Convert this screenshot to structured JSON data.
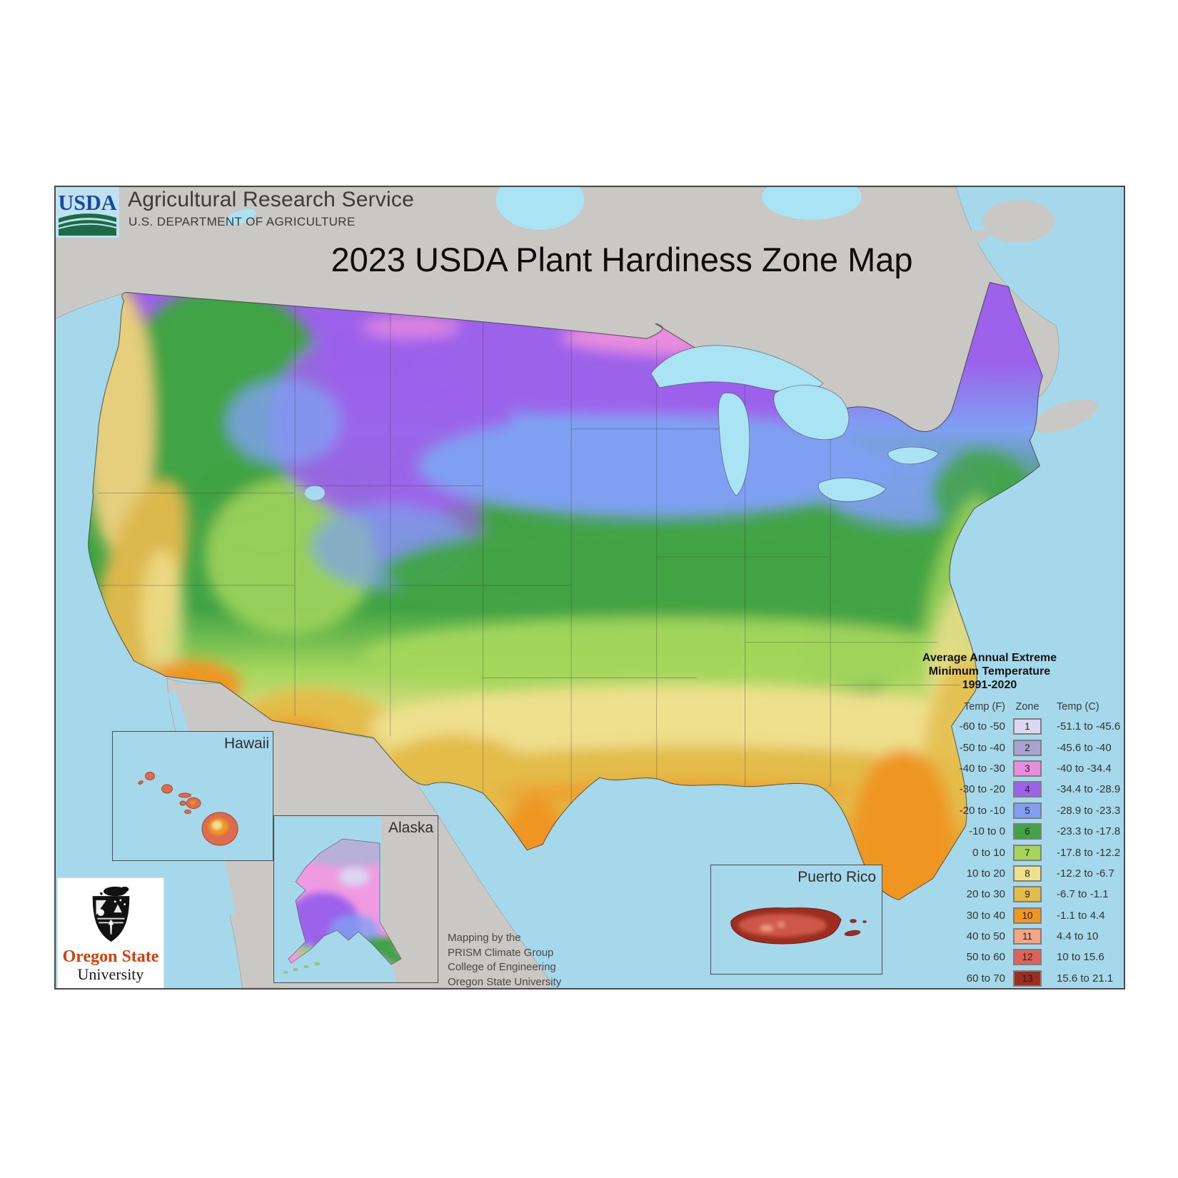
{
  "header": {
    "usda_logo_text": "USDA",
    "agency": "Agricultural Research Service",
    "department": "U.S. DEPARTMENT OF AGRICULTURE"
  },
  "title": "2023 USDA Plant Hardiness Zone Map",
  "legend": {
    "title_line1": "Average Annual Extreme",
    "title_line2": "Minimum Temperature",
    "title_line3": "1991-2020",
    "columns": {
      "f": "Temp (F)",
      "zone": "Zone",
      "c": "Temp (C)"
    },
    "zones": [
      {
        "zone": "1",
        "f": "-60 to -50",
        "c": "-51.1 to -45.6",
        "color": "#dcd7f2"
      },
      {
        "zone": "2",
        "f": "-50 to -40",
        "c": "-45.6 to -40",
        "color": "#a9a3cf"
      },
      {
        "zone": "3",
        "f": "-40 to -30",
        "c": "-40 to -34.4",
        "color": "#ea8dde"
      },
      {
        "zone": "4",
        "f": "-30 to -20",
        "c": "-34.4 to -28.9",
        "color": "#9c62ea"
      },
      {
        "zone": "5",
        "f": "-20 to -10",
        "c": "-28.9 to -23.3",
        "color": "#7fa0f2"
      },
      {
        "zone": "6",
        "f": "-10 to 0",
        "c": "-23.3 to -17.8",
        "color": "#41a344"
      },
      {
        "zone": "7",
        "f": "0 to 10",
        "c": "-17.8 to -12.2",
        "color": "#a4d65d"
      },
      {
        "zone": "8",
        "f": "10 to 20",
        "c": "-12.2 to -6.7",
        "color": "#efe08e"
      },
      {
        "zone": "9",
        "f": "20 to 30",
        "c": "-6.7 to -1.1",
        "color": "#e3bc4a"
      },
      {
        "zone": "10",
        "f": "30 to 40",
        "c": "-1.1 to 4.4",
        "color": "#ef9521"
      },
      {
        "zone": "11",
        "f": "40 to 50",
        "c": "4.4 to 10",
        "color": "#f4a583"
      },
      {
        "zone": "12",
        "f": "50 to 60",
        "c": "10 to 15.6",
        "color": "#e0615a"
      },
      {
        "zone": "13",
        "f": "60 to 70",
        "c": "15.6 to 21.1",
        "color": "#9c2d1f"
      }
    ]
  },
  "insets": {
    "hawaii_label": "Hawaii",
    "alaska_label": "Alaska",
    "puerto_rico_label": "Puerto Rico"
  },
  "credits": {
    "lines": [
      "Mapping by the",
      "PRISM Climate Group",
      "College of Engineering",
      "Oregon State University"
    ]
  },
  "osu_logo": {
    "line1": "Oregon State",
    "line2": "University"
  },
  "map_colors": {
    "ocean": "#a5d8eb",
    "land_outside_us": "#c9c8c5",
    "lake": "#a9e3f4"
  }
}
